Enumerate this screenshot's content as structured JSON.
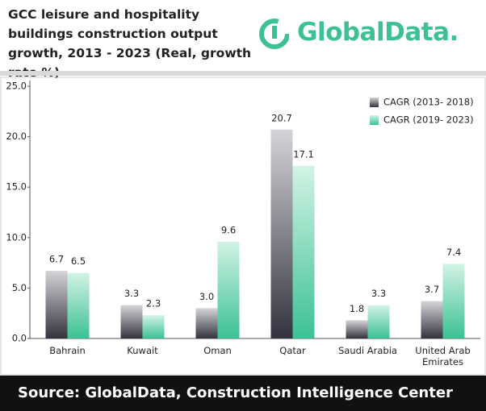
{
  "header": {
    "title": "GCC leisure and hospitality buildings construction output growth, 2013 - 2023 (Real, growth rate %)",
    "logo": "GlobalData."
  },
  "chart_data": {
    "type": "bar",
    "categories": [
      "Bahrain",
      "Kuwait",
      "Oman",
      "Qatar",
      "Saudi Arabia",
      "United Arab Emirates"
    ],
    "series": [
      {
        "name": "CAGR (2013- 2018)",
        "color": "#33333f",
        "values": [
          6.7,
          3.3,
          3.0,
          20.7,
          1.8,
          3.7
        ],
        "value_labels": [
          "6.7",
          "3.3",
          "3.0",
          "20.7",
          "1.8",
          "3.7"
        ]
      },
      {
        "name": "CAGR (2019- 2023)",
        "color": "#3cc193",
        "values": [
          6.5,
          2.3,
          9.6,
          17.1,
          3.3,
          7.4
        ],
        "value_labels": [
          "6.5",
          "2.3",
          "9.6",
          "17.1",
          "3.3",
          "7.4"
        ]
      }
    ],
    "ylim": [
      0,
      25
    ],
    "yticks": [
      {
        "value": 0,
        "label": "0.0"
      },
      {
        "value": 5,
        "label": "5.0"
      },
      {
        "value": 10,
        "label": "10.0"
      },
      {
        "value": 15,
        "label": "15.0"
      },
      {
        "value": 20,
        "label": "20.0"
      },
      {
        "value": 25,
        "label": "25.0"
      }
    ],
    "legend": "top-right"
  },
  "footer": {
    "source": "Source:  GlobalData, Construction Intelligence Center"
  }
}
